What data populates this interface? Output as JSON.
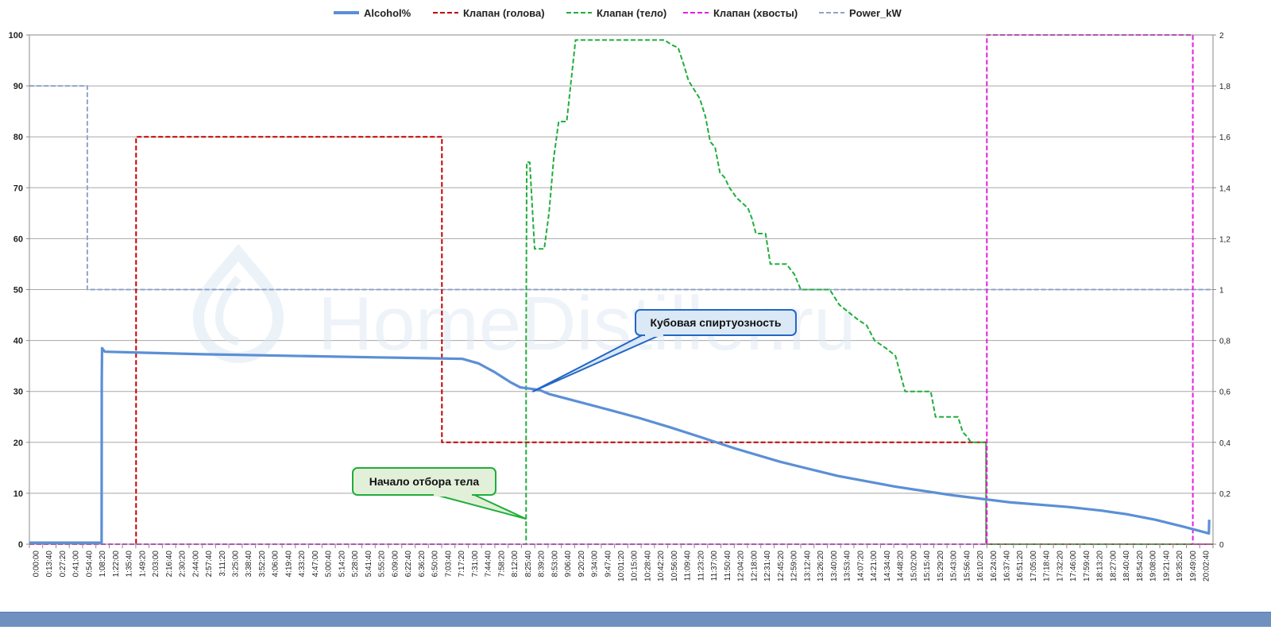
{
  "watermark": "HomeDistiller.ru",
  "chart_data": {
    "type": "line",
    "legend_position": "top",
    "grid": "horizontal",
    "legend": [
      {
        "label": "Alcohol%",
        "color": "#5b8fd6",
        "dash": "solid"
      },
      {
        "label": "Клапан (голова)",
        "color": "#c00000",
        "dash": "dashed"
      },
      {
        "label": "Клапан (тело)",
        "color": "#1fae3a",
        "dash": "dashed"
      },
      {
        "label": "Клапан (хвосты)",
        "color": "#e21fe2",
        "dash": "dashed"
      },
      {
        "label": "Power_kW",
        "color": "#8ea5c8",
        "dash": "dashed"
      }
    ],
    "y_left": {
      "min": 0,
      "max": 100,
      "ticks": [
        "0",
        "10",
        "20",
        "30",
        "40",
        "50",
        "60",
        "70",
        "80",
        "90",
        "100"
      ]
    },
    "y_right": {
      "min": 0,
      "max": 2,
      "ticks": [
        "0",
        "0,2",
        "0,4",
        "0,6",
        "0,8",
        "1",
        "1,2",
        "1,4",
        "1,6",
        "1,8",
        "2"
      ]
    },
    "x_range_seconds": [
      0,
      73800
    ],
    "x_ticks": [
      "0:00:00",
      "0:13:40",
      "0:27:20",
      "0:41:00",
      "0:54:40",
      "1:08:20",
      "1:22:00",
      "1:35:40",
      "1:49:20",
      "2:03:00",
      "2:16:40",
      "2:30:20",
      "2:44:00",
      "2:57:40",
      "3:11:20",
      "3:25:00",
      "3:38:40",
      "3:52:20",
      "4:06:00",
      "4:19:40",
      "4:33:20",
      "4:47:00",
      "5:00:40",
      "5:14:20",
      "5:28:00",
      "5:41:40",
      "5:55:20",
      "6:09:00",
      "6:22:40",
      "6:36:20",
      "6:50:00",
      "7:03:40",
      "7:17:20",
      "7:31:00",
      "7:44:40",
      "7:58:20",
      "8:12:00",
      "8:25:40",
      "8:39:20",
      "8:53:00",
      "9:06:40",
      "9:20:20",
      "9:34:00",
      "9:47:40",
      "10:01:20",
      "10:15:00",
      "10:28:40",
      "10:42:20",
      "10:56:00",
      "11:09:40",
      "11:23:20",
      "11:37:00",
      "11:50:40",
      "12:04:20",
      "12:18:00",
      "12:31:40",
      "12:45:20",
      "12:59:00",
      "13:12:40",
      "13:26:20",
      "13:40:00",
      "13:53:40",
      "14:07:20",
      "14:21:00",
      "14:34:40",
      "14:48:20",
      "15:02:00",
      "15:15:40",
      "15:29:20",
      "15:43:00",
      "15:56:40",
      "16:10:20",
      "16:24:00",
      "16:37:40",
      "16:51:20",
      "17:05:00",
      "17:18:40",
      "17:32:20",
      "17:46:00",
      "17:59:40",
      "18:13:20",
      "18:27:00",
      "18:40:40",
      "18:54:20",
      "19:08:00",
      "19:21:40",
      "19:35:20",
      "19:49:00",
      "20:02:40"
    ],
    "series": [
      {
        "name": "Alcohol%",
        "axis": "left",
        "color": "#5b8fd6",
        "dash": "solid",
        "points": [
          [
            0,
            0.3
          ],
          [
            4500,
            0.3
          ],
          [
            4510,
            32
          ],
          [
            4530,
            38.5
          ],
          [
            4700,
            37.8
          ],
          [
            7200,
            37.6
          ],
          [
            10800,
            37.3
          ],
          [
            14400,
            37.1
          ],
          [
            18000,
            36.9
          ],
          [
            21600,
            36.7
          ],
          [
            25200,
            36.5
          ],
          [
            27000,
            36.4
          ],
          [
            28000,
            35.5
          ],
          [
            29000,
            33.8
          ],
          [
            30000,
            31.8
          ],
          [
            30600,
            30.8
          ],
          [
            31800,
            30.3
          ],
          [
            32400,
            29.5
          ],
          [
            33600,
            28.5
          ],
          [
            36000,
            26.5
          ],
          [
            38000,
            24.8
          ],
          [
            40000,
            22.9
          ],
          [
            41880,
            21
          ],
          [
            44000,
            18.8
          ],
          [
            46800,
            16.2
          ],
          [
            50400,
            13.4
          ],
          [
            54000,
            11.3
          ],
          [
            57600,
            9.6
          ],
          [
            61200,
            8.2
          ],
          [
            64800,
            7.3
          ],
          [
            66840,
            6.6
          ],
          [
            68400,
            5.9
          ],
          [
            70200,
            4.8
          ],
          [
            72000,
            3.4
          ],
          [
            73200,
            2.4
          ],
          [
            73540,
            2.1
          ],
          [
            73560,
            4.8
          ]
        ]
      },
      {
        "name": "Клапан (голова)",
        "axis": "left",
        "color": "#c00000",
        "dash": "dashed",
        "points": [
          [
            0,
            0
          ],
          [
            6650,
            0
          ],
          [
            6650,
            80
          ],
          [
            25720,
            80
          ],
          [
            25720,
            20
          ],
          [
            59660,
            20
          ],
          [
            59660,
            0
          ],
          [
            73800,
            0
          ]
        ]
      },
      {
        "name": "Клапан (тело)",
        "axis": "left",
        "color": "#1fae3a",
        "dash": "dashed",
        "points": [
          [
            0,
            0
          ],
          [
            30970,
            0
          ],
          [
            30970,
            40
          ],
          [
            31010,
            75
          ],
          [
            31200,
            75
          ],
          [
            31500,
            58
          ],
          [
            32100,
            58
          ],
          [
            32400,
            65
          ],
          [
            32700,
            76
          ],
          [
            33000,
            83
          ],
          [
            33500,
            83
          ],
          [
            34050,
            99
          ],
          [
            39600,
            99
          ],
          [
            40080,
            98
          ],
          [
            40450,
            97.5
          ],
          [
            40820,
            94
          ],
          [
            41100,
            91
          ],
          [
            41500,
            89
          ],
          [
            41800,
            87.5
          ],
          [
            42150,
            84
          ],
          [
            42450,
            79
          ],
          [
            42750,
            78
          ],
          [
            43050,
            73
          ],
          [
            43350,
            72
          ],
          [
            43650,
            70
          ],
          [
            44100,
            68
          ],
          [
            44800,
            66
          ],
          [
            45050,
            64
          ],
          [
            45300,
            61
          ],
          [
            45900,
            61
          ],
          [
            46200,
            55
          ],
          [
            47200,
            55
          ],
          [
            47700,
            53
          ],
          [
            48100,
            50
          ],
          [
            49900,
            50
          ],
          [
            50500,
            47
          ],
          [
            51700,
            44
          ],
          [
            52200,
            43
          ],
          [
            52700,
            40
          ],
          [
            53400,
            38.5
          ],
          [
            54000,
            37
          ],
          [
            54600,
            30
          ],
          [
            56200,
            30
          ],
          [
            56500,
            25
          ],
          [
            57900,
            25
          ],
          [
            58200,
            22
          ],
          [
            58500,
            21
          ],
          [
            58700,
            20
          ],
          [
            59650,
            20
          ],
          [
            59650,
            0
          ],
          [
            73800,
            0
          ]
        ]
      },
      {
        "name": "Клапан (хвосты)",
        "axis": "left",
        "color": "#e21fe2",
        "dash": "dashed",
        "points": [
          [
            0,
            0
          ],
          [
            59700,
            0
          ],
          [
            59700,
            100
          ],
          [
            72540,
            100
          ],
          [
            72540,
            0
          ],
          [
            73800,
            0
          ]
        ]
      },
      {
        "name": "Power_kW",
        "axis": "right",
        "color": "#8ea5c8",
        "dash": "dashed",
        "points": [
          [
            0,
            1.8
          ],
          [
            3610,
            1.8
          ],
          [
            3610,
            1
          ],
          [
            73800,
            1
          ]
        ]
      }
    ],
    "annotations": [
      {
        "text": "Кубовая спиртуозность",
        "box_fill": "#dbe8f6",
        "border": "#2267c6",
        "target_x": 31400,
        "target_y": 30
      },
      {
        "text": "Начало отбора  тела",
        "box_fill": "#e2f0d9",
        "border": "#1fae3a",
        "target_x": 30950,
        "target_y": 5
      }
    ]
  }
}
